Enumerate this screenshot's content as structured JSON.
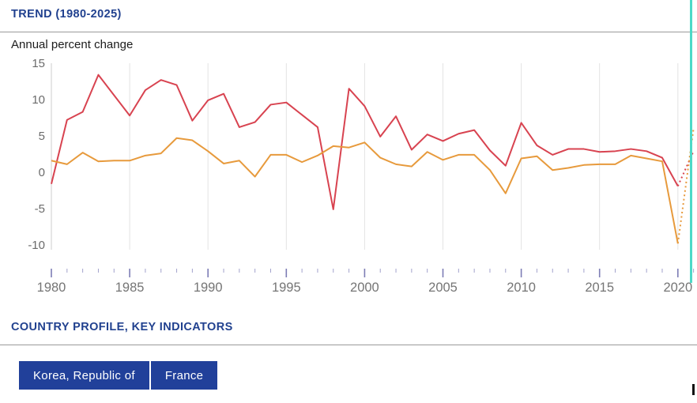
{
  "trend": {
    "heading": "TREND (1980-2025)",
    "subtitle": "Annual percent change"
  },
  "profile": {
    "heading": "COUNTRY PROFILE, KEY INDICATORS",
    "tabs": [
      {
        "label": "Korea, Republic of"
      },
      {
        "label": "France"
      }
    ]
  },
  "colors": {
    "heading_blue": "#21418f",
    "tab_blue": "#21409a",
    "korea_line": "#d84350",
    "france_line": "#e79a3c",
    "year_marker_teal": "#4ed9c7",
    "gridline": "#e3e3e3",
    "axis": "#cccccc",
    "tick_major": "#7d7db5",
    "tick_minor": "#a2a2cc",
    "axis_label": "#757575"
  },
  "chart_data": {
    "type": "line",
    "title": "TREND (1980-2025)",
    "ylabel": "Annual percent change",
    "unit": "percent",
    "xlim": [
      1980,
      2021.1
    ],
    "ylim": [
      -10,
      15
    ],
    "grid": "vertical-only",
    "legend_position": "none",
    "y_ticks": [
      15,
      10,
      5,
      0,
      -5,
      -10
    ],
    "x_major_ticks": [
      1980,
      1985,
      1990,
      1995,
      2000,
      2005,
      2010,
      2015,
      2020
    ],
    "x": [
      1980,
      1981,
      1982,
      1983,
      1984,
      1985,
      1986,
      1987,
      1988,
      1989,
      1990,
      1991,
      1992,
      1993,
      1994,
      1995,
      1996,
      1997,
      1998,
      1999,
      2000,
      2001,
      2002,
      2003,
      2004,
      2005,
      2006,
      2007,
      2008,
      2009,
      2010,
      2011,
      2012,
      2013,
      2014,
      2015,
      2016,
      2017,
      2018,
      2019,
      2020
    ],
    "series": [
      {
        "name": "Korea, Republic of",
        "color": "#d84350",
        "style": "solid",
        "values": [
          -1.6,
          7.2,
          8.3,
          13.4,
          10.6,
          7.8,
          11.3,
          12.7,
          12.0,
          7.1,
          9.9,
          10.8,
          6.2,
          6.9,
          9.3,
          9.6,
          7.9,
          6.2,
          -5.1,
          11.5,
          9.1,
          4.9,
          7.7,
          3.1,
          5.2,
          4.3,
          5.3,
          5.8,
          3.0,
          0.9,
          6.8,
          3.7,
          2.4,
          3.2,
          3.2,
          2.8,
          2.9,
          3.2,
          2.9,
          2.0,
          -1.9
        ]
      },
      {
        "name": "France",
        "color": "#e79a3c",
        "style": "solid",
        "values": [
          1.6,
          1.1,
          2.7,
          1.5,
          1.6,
          1.6,
          2.3,
          2.6,
          4.7,
          4.4,
          2.9,
          1.2,
          1.6,
          -0.6,
          2.4,
          2.4,
          1.4,
          2.3,
          3.6,
          3.4,
          4.1,
          2.0,
          1.1,
          0.8,
          2.8,
          1.7,
          2.4,
          2.4,
          0.3,
          -2.9,
          1.9,
          2.2,
          0.3,
          0.6,
          1.0,
          1.1,
          1.1,
          2.3,
          1.9,
          1.5,
          -9.8
        ]
      }
    ],
    "projections": [
      {
        "name": "Korea, Republic of",
        "color": "#d84350",
        "style": "dotted",
        "x": [
          2020,
          2021
        ],
        "values": [
          -1.9,
          2.9
        ]
      },
      {
        "name": "France",
        "color": "#e79a3c",
        "style": "dotted",
        "x": [
          2020,
          2021
        ],
        "values": [
          -9.8,
          6.0
        ]
      }
    ],
    "current_year_marker": 2020.9
  }
}
